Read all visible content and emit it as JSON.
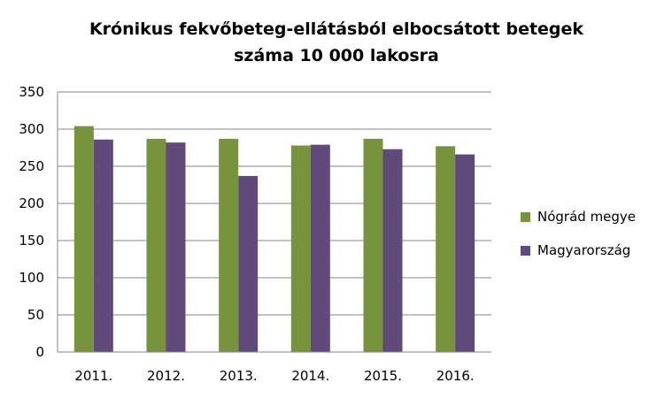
{
  "chart_data": {
    "type": "bar",
    "title_line1": "Krónikus fekvőbeteg-ellátásból elbocsátott betegek",
    "title_line2": "száma 10 000 lakosra",
    "categories": [
      "2011.",
      "2012.",
      "2013.",
      "2014.",
      "2015.",
      "2016."
    ],
    "series": [
      {
        "name": "Nógrád megye",
        "color": "#77933C",
        "values": [
          304,
          287,
          287,
          278,
          287,
          277
        ]
      },
      {
        "name": "Magyarország",
        "color": "#604A7B",
        "values": [
          286,
          282,
          237,
          279,
          273,
          266
        ]
      }
    ],
    "ylim": [
      0,
      350
    ],
    "yticks": [
      0,
      50,
      100,
      150,
      200,
      250,
      300,
      350
    ],
    "grid": true,
    "legend_position": "right"
  }
}
